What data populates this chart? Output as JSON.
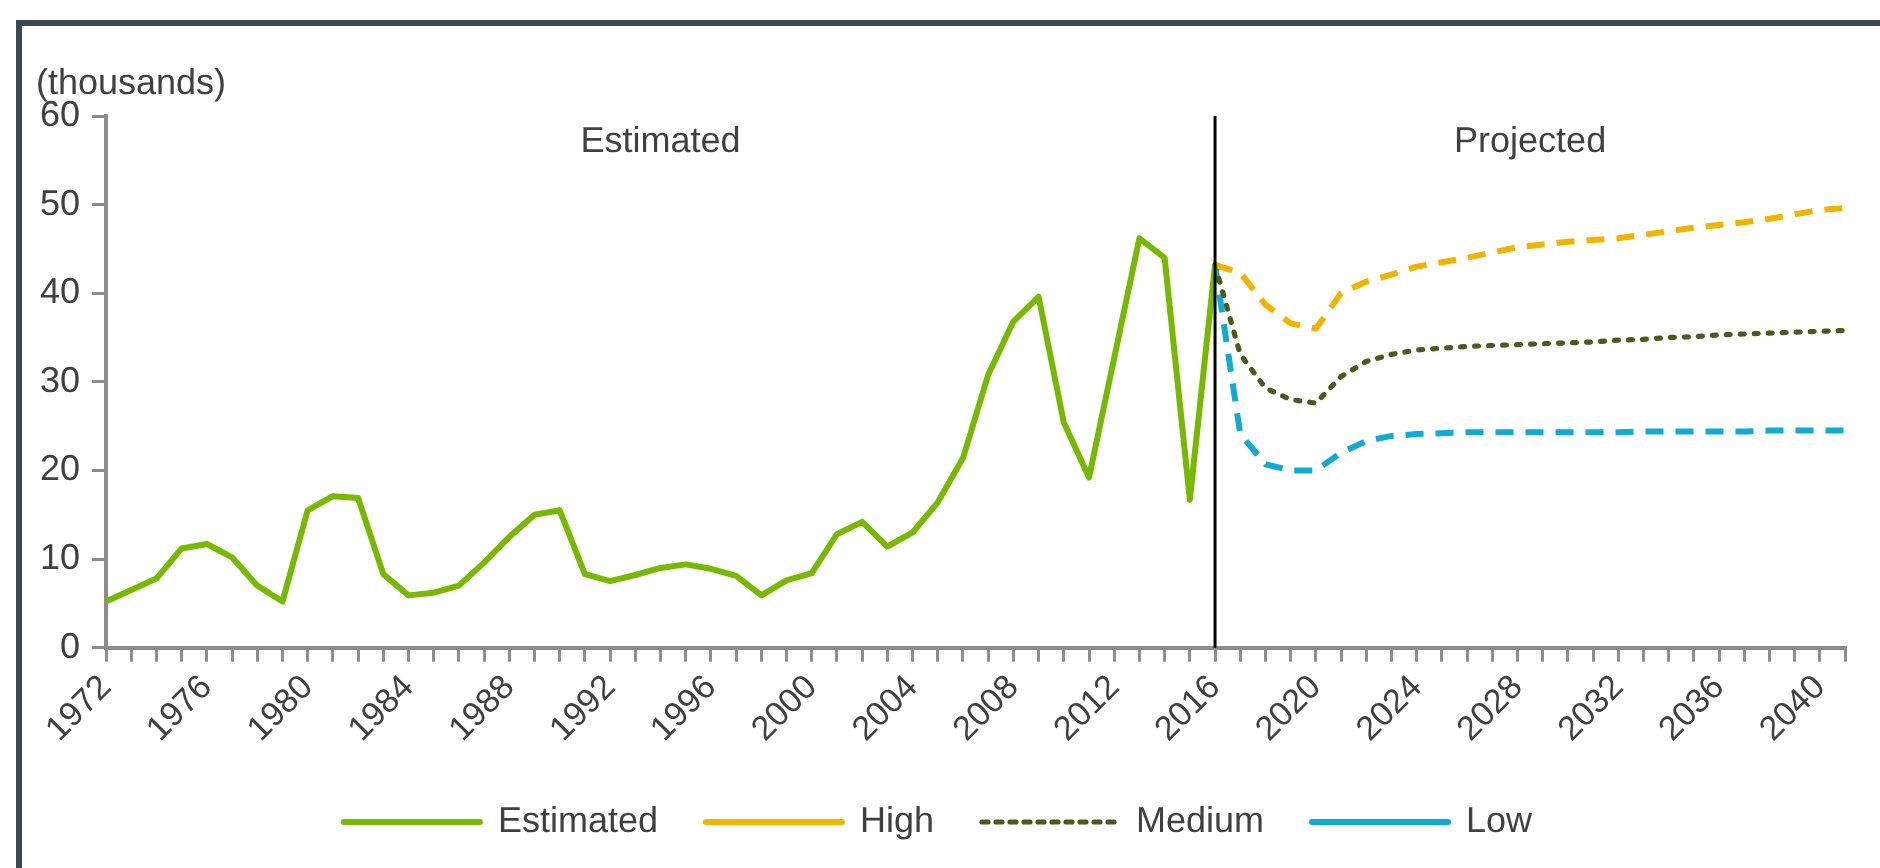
{
  "chart_data": {
    "type": "line",
    "ylabel": "(thousands)",
    "categories": [
      "1972",
      null,
      null,
      null,
      "1976",
      null,
      null,
      null,
      "1980",
      null,
      null,
      null,
      "1984",
      null,
      null,
      null,
      "1988",
      null,
      null,
      null,
      "1992",
      null,
      null,
      null,
      "1996",
      null,
      null,
      null,
      "2000",
      null,
      null,
      null,
      "2004",
      null,
      null,
      null,
      "2008",
      null,
      null,
      null,
      "2012",
      null,
      null,
      null,
      "2016",
      null,
      null,
      null,
      "2020",
      null,
      null,
      null,
      "2024",
      null,
      null,
      null,
      "2028",
      null,
      null,
      null,
      "2032",
      null,
      null,
      null,
      "2036",
      null,
      null,
      null,
      "2040",
      null
    ],
    "series": [
      {
        "name": "Estimated",
        "color": "#77b800",
        "line_style": "solid",
        "values": [
          5.2,
          6.5,
          7.8,
          11.2,
          11.7,
          10.2,
          7.0,
          5.2,
          15.5,
          17.1,
          16.9,
          8.3,
          5.9,
          6.2,
          7.0,
          9.6,
          12.5,
          15.0,
          15.5,
          8.3,
          7.5,
          8.2,
          9.0,
          9.4,
          8.9,
          8.1,
          5.9,
          7.6,
          8.4,
          12.8,
          14.2,
          11.4,
          13.0,
          16.4,
          21.4,
          30.8,
          36.8,
          39.6,
          25.4,
          19.2,
          32.7,
          46.2,
          44.0,
          16.7,
          43.2,
          null,
          null,
          null,
          null,
          null,
          null,
          null,
          null,
          null,
          null,
          null,
          null,
          null,
          null,
          null,
          null,
          null,
          null,
          null,
          null,
          null,
          null,
          null,
          null,
          null
        ]
      },
      {
        "name": "High",
        "color": "#f0b400",
        "line_style": "dashed",
        "values": [
          null,
          null,
          null,
          null,
          null,
          null,
          null,
          null,
          null,
          null,
          null,
          null,
          null,
          null,
          null,
          null,
          null,
          null,
          null,
          null,
          null,
          null,
          null,
          null,
          null,
          null,
          null,
          null,
          null,
          null,
          null,
          null,
          null,
          null,
          null,
          null,
          null,
          null,
          null,
          null,
          null,
          null,
          null,
          null,
          43.2,
          42.3,
          38.7,
          36.6,
          36.0,
          40.0,
          41.3,
          42.1,
          43.0,
          43.5,
          44.0,
          44.6,
          45.2,
          45.5,
          45.8,
          46.0,
          46.2,
          46.6,
          47.0,
          47.4,
          47.7,
          48.0,
          48.4,
          48.9,
          49.4,
          49.6
        ]
      },
      {
        "name": "Medium",
        "color": "#4d5a1e",
        "line_style": "dotted",
        "values": [
          null,
          null,
          null,
          null,
          null,
          null,
          null,
          null,
          null,
          null,
          null,
          null,
          null,
          null,
          null,
          null,
          null,
          null,
          null,
          null,
          null,
          null,
          null,
          null,
          null,
          null,
          null,
          null,
          null,
          null,
          null,
          null,
          null,
          null,
          null,
          null,
          null,
          null,
          null,
          null,
          null,
          null,
          null,
          null,
          43.2,
          33.1,
          29.3,
          28.0,
          27.6,
          30.6,
          32.3,
          33.1,
          33.6,
          33.8,
          34.0,
          34.1,
          34.2,
          34.3,
          34.4,
          34.5,
          34.7,
          34.8,
          35.0,
          35.1,
          35.3,
          35.4,
          35.5,
          35.6,
          35.7,
          35.8
        ]
      },
      {
        "name": "Low",
        "color": "#12a9d2",
        "line_style": "dashed",
        "values": [
          null,
          null,
          null,
          null,
          null,
          null,
          null,
          null,
          null,
          null,
          null,
          null,
          null,
          null,
          null,
          null,
          null,
          null,
          null,
          null,
          null,
          null,
          null,
          null,
          null,
          null,
          null,
          null,
          null,
          null,
          null,
          null,
          null,
          null,
          null,
          null,
          null,
          null,
          null,
          null,
          null,
          null,
          null,
          null,
          43.2,
          24.1,
          20.7,
          20.0,
          20.0,
          22.0,
          23.3,
          23.9,
          24.1,
          24.2,
          24.3,
          24.3,
          24.3,
          24.3,
          24.3,
          24.3,
          24.3,
          24.4,
          24.4,
          24.4,
          24.4,
          24.4,
          24.5,
          24.5,
          24.5,
          24.5
        ]
      }
    ],
    "ylim": [
      0,
      60
    ],
    "yticks": [
      0,
      10,
      20,
      30,
      40,
      50,
      60
    ],
    "grid": false,
    "legend": "bottom",
    "marker": "none",
    "ref_lines": [
      {
        "axis": "x",
        "value": "2016",
        "color": "#000000"
      }
    ],
    "annotations": [
      "Estimated",
      "Projected"
    ]
  }
}
